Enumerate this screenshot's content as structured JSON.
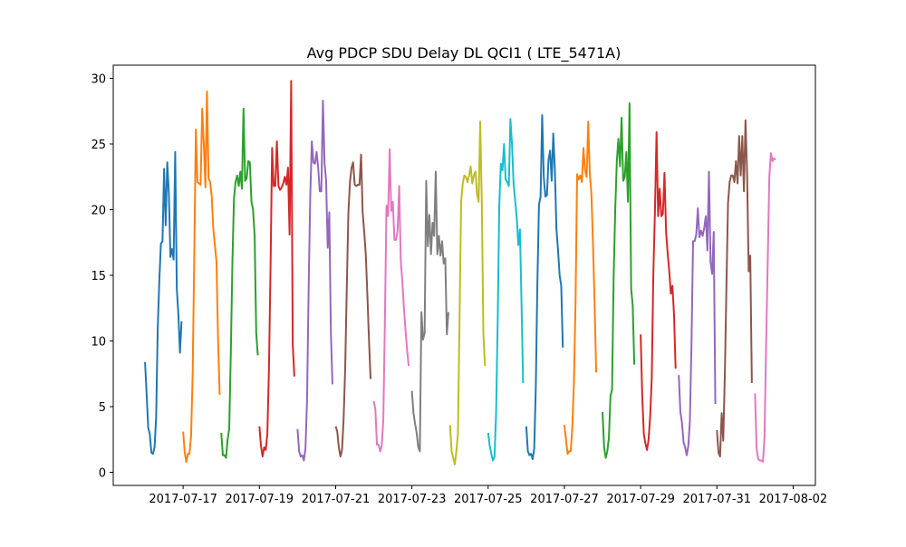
{
  "chart_data": {
    "type": "line",
    "title": "Avg PDCP SDU Delay DL QCI1 ( LTE_5471A)",
    "xlabel": "",
    "ylabel": "",
    "x_tick_labels": [
      "2017-07-17",
      "2017-07-19",
      "2017-07-21",
      "2017-07-23",
      "2017-07-25",
      "2017-07-27",
      "2017-07-29",
      "2017-07-31",
      "2017-08-02"
    ],
    "x_ticks": [
      "2017-07-17",
      "2017-07-19",
      "2017-07-21",
      "2017-07-23",
      "2017-07-25",
      "2017-07-27",
      "2017-07-29",
      "2017-07-31",
      "2017-08-02"
    ],
    "y_ticks": [
      0,
      5,
      10,
      15,
      20,
      25,
      30
    ],
    "xlim": [
      "2017-07-15 04:00",
      "2017-08-02 14:00"
    ],
    "ylim": [
      -1,
      31
    ],
    "grid": false,
    "legend": "none",
    "colors": [
      "#1f77b4",
      "#ff7f0e",
      "#2ca02c",
      "#d62728",
      "#9467bd",
      "#8c564b",
      "#e377c2",
      "#7f7f7f",
      "#bcbd22",
      "#17becf"
    ],
    "series": [
      {
        "date": "2017-07-16",
        "color": "#1f77b4",
        "y": [
          8.4,
          6.0,
          3.4,
          2.9,
          1.5,
          1.4,
          1.9,
          4.2,
          11.0,
          14.6,
          17.4,
          17.6,
          23.1,
          18.8,
          23.6,
          21.3,
          16.4,
          17.0,
          16.2,
          24.4,
          14.0,
          12.0,
          9.1,
          11.5
        ]
      },
      {
        "date": "2017-07-17",
        "color": "#ff7f0e",
        "y": [
          3.1,
          1.5,
          0.8,
          1.4,
          1.4,
          2.8,
          7.5,
          16.5,
          26.1,
          22.1,
          22.0,
          21.9,
          27.7,
          25.0,
          21.7,
          29.0,
          22.4,
          22.1,
          21.0,
          18.5,
          17.3,
          16.0,
          10.0,
          5.9
        ]
      },
      {
        "date": "2017-07-18",
        "color": "#2ca02c",
        "y": [
          3.0,
          1.3,
          1.3,
          1.1,
          2.5,
          3.3,
          9.0,
          15.9,
          20.9,
          22.1,
          22.6,
          21.8,
          22.9,
          21.6,
          27.7,
          22.2,
          22.4,
          23.7,
          23.6,
          20.6,
          20.0,
          18.0,
          10.6,
          8.9
        ]
      },
      {
        "date": "2017-07-19",
        "color": "#d62728",
        "y": [
          3.5,
          2.0,
          1.2,
          1.9,
          1.7,
          2.9,
          7.8,
          15.5,
          24.7,
          21.8,
          21.8,
          25.2,
          21.8,
          21.5,
          21.7,
          22.0,
          22.5,
          21.9,
          23.2,
          18.1,
          29.8,
          9.7,
          7.3
        ]
      },
      {
        "date": "2017-07-20",
        "color": "#9467bd",
        "y": [
          3.3,
          1.6,
          1.2,
          1.3,
          0.9,
          1.8,
          5.5,
          14.0,
          21.0,
          25.2,
          23.6,
          23.5,
          24.4,
          23.2,
          21.4,
          21.4,
          28.3,
          23.6,
          22.2,
          17.1,
          19.8,
          10.6,
          6.7
        ]
      },
      {
        "date": "2017-07-21",
        "color": "#8c564b",
        "y": [
          3.5,
          3.1,
          1.9,
          1.2,
          1.7,
          4.0,
          7.9,
          14.0,
          19.7,
          22.1,
          23.2,
          23.6,
          21.9,
          21.8,
          21.9,
          21.9,
          24.2,
          19.8,
          18.3,
          16.5,
          13.4,
          10.0,
          7.1
        ]
      },
      {
        "date": "2017-07-22",
        "color": "#e377c2",
        "y": [
          5.4,
          4.8,
          2.1,
          2.1,
          1.6,
          2.0,
          4.0,
          11.5,
          20.3,
          19.5,
          24.6,
          19.9,
          20.6,
          17.7,
          17.7,
          18.4,
          21.8,
          16.1,
          14.5,
          12.5,
          10.8,
          9.3,
          8.1
        ]
      },
      {
        "date": "2017-07-23",
        "color": "#7f7f7f",
        "y": [
          6.2,
          4.5,
          3.7,
          3.0,
          1.9,
          1.6,
          12.2,
          10.1,
          10.6,
          22.2,
          17.2,
          19.6,
          16.6,
          19.0,
          18.0,
          22.9,
          16.6,
          18.0,
          16.5,
          17.6,
          15.9,
          16.3,
          10.5,
          12.2
        ]
      },
      {
        "date": "2017-07-24",
        "color": "#bcbd22",
        "y": [
          3.6,
          1.6,
          1.1,
          0.6,
          1.6,
          3.0,
          11.8,
          20.6,
          22.0,
          22.6,
          22.5,
          22.1,
          22.6,
          23.3,
          22.0,
          22.6,
          22.9,
          21.2,
          20.6,
          26.7,
          20.6,
          10.5,
          8.1
        ]
      },
      {
        "date": "2017-07-25",
        "color": "#17becf",
        "y": [
          3.0,
          2.0,
          1.4,
          0.9,
          1.2,
          4.5,
          11.4,
          20.3,
          23.5,
          23.0,
          25.0,
          22.3,
          22.1,
          21.8,
          26.9,
          25.0,
          22.0,
          20.7,
          19.4,
          17.3,
          18.5,
          12.9,
          6.8
        ]
      },
      {
        "date": "2017-07-26",
        "color": "#1f77b4",
        "y": [
          3.5,
          1.6,
          1.3,
          1.4,
          1.0,
          1.8,
          6.5,
          14.5,
          20.4,
          21.0,
          27.2,
          22.5,
          21.0,
          21.1,
          23.8,
          24.5,
          22.2,
          25.8,
          23.0,
          18.5,
          16.9,
          15.0,
          14.2,
          9.5
        ]
      },
      {
        "date": "2017-07-27",
        "color": "#ff7f0e",
        "y": [
          3.6,
          2.5,
          1.4,
          1.6,
          1.6,
          3.5,
          6.8,
          12.9,
          22.7,
          22.3,
          22.6,
          22.1,
          24.7,
          23.0,
          22.5,
          26.7,
          22.7,
          21.2,
          17.4,
          12.9,
          7.6
        ]
      },
      {
        "date": "2017-07-28",
        "color": "#2ca02c",
        "y": [
          4.6,
          1.9,
          1.1,
          1.6,
          2.6,
          5.8,
          6.3,
          14.9,
          20.0,
          23.7,
          25.4,
          23.3,
          27.0,
          22.2,
          22.5,
          24.4,
          20.6,
          28.1,
          14.0,
          12.7,
          8.2
        ]
      },
      {
        "date": "2017-07-29",
        "color": "#d62728",
        "y": [
          10.5,
          5.8,
          2.9,
          2.2,
          1.7,
          2.5,
          4.3,
          7.2,
          15.2,
          19.9,
          25.9,
          19.5,
          21.6,
          19.5,
          19.7,
          22.8,
          18.3,
          16.7,
          15.3,
          13.6,
          14.2,
          12.0,
          7.9
        ]
      },
      {
        "date": "2017-07-30",
        "color": "#9467bd",
        "y": [
          7.4,
          4.6,
          3.8,
          2.3,
          1.9,
          1.3,
          2.0,
          3.9,
          9.8,
          17.6,
          17.6,
          18.1,
          20.1,
          17.9,
          18.4,
          18.0,
          18.6,
          19.5,
          16.9,
          22.9,
          16.0,
          15.1,
          18.3,
          5.2
        ]
      },
      {
        "date": "2017-07-31",
        "color": "#8c564b",
        "y": [
          3.2,
          1.5,
          1.2,
          4.5,
          2.4,
          7.5,
          14.2,
          20.5,
          22.1,
          22.6,
          22.6,
          22.1,
          23.7,
          22.0,
          25.6,
          22.6,
          25.6,
          21.4,
          26.8,
          22.8,
          15.3,
          16.5,
          6.8
        ]
      },
      {
        "date": "2017-08-01",
        "color": "#e377c2",
        "y": [
          6.0,
          1.8,
          1.0,
          0.9,
          0.9,
          0.8,
          2.8,
          10.0,
          16.1,
          22.5,
          24.3,
          23.7,
          23.9,
          23.8
        ]
      }
    ]
  }
}
